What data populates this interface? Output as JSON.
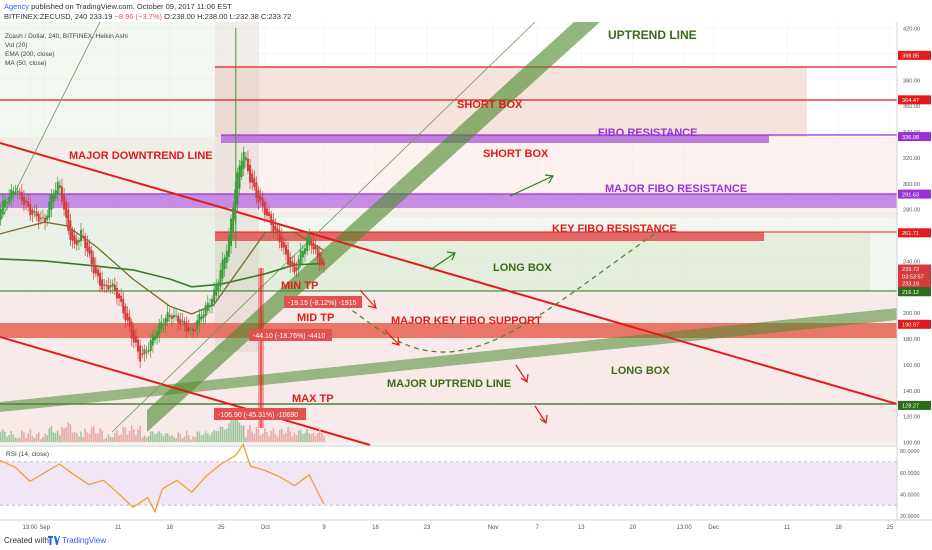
{
  "header": {
    "user": "Agency",
    "published": " published on TradingView.com, October 09, 2017 11:06 EST",
    "ticker": "BITFINEX:ZECUSD, 240",
    "last": "233.19",
    "change": "−8.96 (−3.7%)",
    "ohlc": "O:238.00 H:238.00 L:232.38 C:233.72"
  },
  "legend": {
    "title": "Zcash / Dollar, 240, BITFINEX, Heikin Ashi",
    "vol": "Vol (20)",
    "ema": "EMA (200, close)",
    "ma": "MA (50, close)"
  },
  "rsi_label": "RSI (14, close)",
  "footer": {
    "created": "Created with",
    "brand": "TradingView"
  },
  "colors": {
    "red": "#e31b1b",
    "purple": "#9b30d9",
    "green": "#2e7d1e",
    "olive": "#3d6b19",
    "axis_green": "#2a6e1a",
    "candle_up": "#3c9a3c",
    "candle_down": "#d43c3c",
    "rsi": "#f0a030",
    "ma": "#7a6b2a",
    "ema": "#3a7a2a"
  },
  "chart_data": {
    "type": "candlestick",
    "title": "Zcash / Dollar, 240, BITFINEX, Heikin Ashi",
    "price_axis": {
      "min": 100,
      "max": 420,
      "step": 20,
      "tick_labels": [
        "100.00",
        "120.00",
        "140.00",
        "160.00",
        "180.00",
        "200.00",
        "220.00",
        "240.00",
        "260.00",
        "280.00",
        "300.00",
        "320.00",
        "340.00",
        "360.00",
        "380.00",
        "400.00",
        "420.00"
      ]
    },
    "price_markers": [
      {
        "value": "398.85",
        "color": "#e31b1b",
        "price": 398.85
      },
      {
        "value": "364.47",
        "color": "#e31b1b",
        "price": 364.47
      },
      {
        "value": "336.08",
        "color": "#9b30d9",
        "price": 336.08
      },
      {
        "value": "291.63",
        "color": "#9b30d9",
        "price": 291.63
      },
      {
        "value": "261.71",
        "color": "#e31b1b",
        "price": 261.71
      },
      {
        "value": "233.72",
        "color": "#d43c3c",
        "price": 233.72
      },
      {
        "value": "03:53:57",
        "color": "#d43c3c",
        "price": 228
      },
      {
        "value": "233.19",
        "color": "#d43c3c",
        "price": 222.8
      },
      {
        "value": "216.12",
        "color": "#2a6e1a",
        "price": 216.12
      },
      {
        "value": "190.97",
        "color": "#e31b1b",
        "price": 190.97
      },
      {
        "value": "128.27",
        "color": "#2a6e1a",
        "price": 128.27
      }
    ],
    "time_labels": [
      "13:00",
      "Sep",
      "11",
      "18",
      "25",
      "Oct",
      "9",
      "16",
      "23",
      "Nov",
      "7",
      "13",
      "20",
      "13:00",
      "Dec",
      "11",
      "18",
      "25"
    ],
    "time_label_dates": [
      "2017-08-30",
      "2017-09-01",
      "2017-09-11",
      "2017-09-18",
      "2017-09-25",
      "2017-10-01",
      "2017-10-09",
      "2017-10-16",
      "2017-10-23",
      "2017-11-01",
      "2017-11-07",
      "2017-11-13",
      "2017-11-20",
      "2017-11-27",
      "2017-12-01",
      "2017-12-11",
      "2017-12-18",
      "2017-12-25"
    ],
    "price_path": [
      {
        "x": "2017-08-24",
        "y": 248
      },
      {
        "x": "2017-08-26",
        "y": 282
      },
      {
        "x": "2017-08-28",
        "y": 296
      },
      {
        "x": "2017-08-30",
        "y": 278
      },
      {
        "x": "2017-09-01",
        "y": 270
      },
      {
        "x": "2017-09-02",
        "y": 292
      },
      {
        "x": "2017-09-03",
        "y": 300
      },
      {
        "x": "2017-09-04",
        "y": 268
      },
      {
        "x": "2017-09-05",
        "y": 250
      },
      {
        "x": "2017-09-06",
        "y": 262
      },
      {
        "x": "2017-09-07",
        "y": 244
      },
      {
        "x": "2017-09-08",
        "y": 228
      },
      {
        "x": "2017-09-09",
        "y": 218
      },
      {
        "x": "2017-09-10",
        "y": 222
      },
      {
        "x": "2017-09-11",
        "y": 212
      },
      {
        "x": "2017-09-12",
        "y": 196
      },
      {
        "x": "2017-09-13",
        "y": 180
      },
      {
        "x": "2017-09-14",
        "y": 165
      },
      {
        "x": "2017-09-15",
        "y": 172
      },
      {
        "x": "2017-09-16",
        "y": 184
      },
      {
        "x": "2017-09-17",
        "y": 193
      },
      {
        "x": "2017-09-18",
        "y": 199
      },
      {
        "x": "2017-09-19",
        "y": 195
      },
      {
        "x": "2017-09-20",
        "y": 190
      },
      {
        "x": "2017-09-21",
        "y": 184
      },
      {
        "x": "2017-09-22",
        "y": 196
      },
      {
        "x": "2017-09-23",
        "y": 204
      },
      {
        "x": "2017-09-24",
        "y": 214
      },
      {
        "x": "2017-09-25",
        "y": 234
      },
      {
        "x": "2017-09-26",
        "y": 255
      },
      {
        "x": "2017-09-27",
        "y": 300
      },
      {
        "x": "2017-09-28",
        "y": 326
      },
      {
        "x": "2017-09-29",
        "y": 302
      },
      {
        "x": "2017-09-30",
        "y": 288
      },
      {
        "x": "2017-10-01",
        "y": 278
      },
      {
        "x": "2017-10-02",
        "y": 266
      },
      {
        "x": "2017-10-03",
        "y": 256
      },
      {
        "x": "2017-10-04",
        "y": 241
      },
      {
        "x": "2017-10-05",
        "y": 231
      },
      {
        "x": "2017-10-06",
        "y": 248
      },
      {
        "x": "2017-10-07",
        "y": 258
      },
      {
        "x": "2017-10-08",
        "y": 244
      },
      {
        "x": "2017-10-09",
        "y": 233.7
      }
    ],
    "ema_200": [
      {
        "x": "2017-08-24",
        "y": 242
      },
      {
        "x": "2017-09-01",
        "y": 240
      },
      {
        "x": "2017-09-08",
        "y": 236
      },
      {
        "x": "2017-09-13",
        "y": 233
      },
      {
        "x": "2017-09-18",
        "y": 226
      },
      {
        "x": "2017-09-21",
        "y": 220
      },
      {
        "x": "2017-09-25",
        "y": 222
      },
      {
        "x": "2017-10-01",
        "y": 230
      },
      {
        "x": "2017-10-05",
        "y": 237
      },
      {
        "x": "2017-10-09",
        "y": 238
      }
    ],
    "ma_50": [
      {
        "x": "2017-08-24",
        "y": 258
      },
      {
        "x": "2017-09-01",
        "y": 270
      },
      {
        "x": "2017-09-04",
        "y": 267
      },
      {
        "x": "2017-09-08",
        "y": 251
      },
      {
        "x": "2017-09-13",
        "y": 226
      },
      {
        "x": "2017-09-18",
        "y": 205
      },
      {
        "x": "2017-09-21",
        "y": 199
      },
      {
        "x": "2017-09-24",
        "y": 206
      },
      {
        "x": "2017-09-28",
        "y": 238
      },
      {
        "x": "2017-10-01",
        "y": 262
      },
      {
        "x": "2017-10-05",
        "y": 262
      },
      {
        "x": "2017-10-09",
        "y": 248
      }
    ],
    "rsi": {
      "label": "RSI (14, close)",
      "min": 20,
      "max": 80,
      "bands": [
        30,
        70
      ],
      "tick_labels": [
        "80.0000",
        "60.0000",
        "40.0000",
        "20.0000"
      ],
      "values": [
        {
          "x": "2017-08-24",
          "y": 58
        },
        {
          "x": "2017-08-26",
          "y": 71
        },
        {
          "x": "2017-08-28",
          "y": 65
        },
        {
          "x": "2017-08-30",
          "y": 52
        },
        {
          "x": "2017-09-01",
          "y": 60
        },
        {
          "x": "2017-09-03",
          "y": 68
        },
        {
          "x": "2017-09-05",
          "y": 58
        },
        {
          "x": "2017-09-07",
          "y": 49
        },
        {
          "x": "2017-09-09",
          "y": 53
        },
        {
          "x": "2017-09-11",
          "y": 41
        },
        {
          "x": "2017-09-13",
          "y": 28
        },
        {
          "x": "2017-09-15",
          "y": 37
        },
        {
          "x": "2017-09-16",
          "y": 24
        },
        {
          "x": "2017-09-17",
          "y": 45
        },
        {
          "x": "2017-09-19",
          "y": 53
        },
        {
          "x": "2017-09-21",
          "y": 42
        },
        {
          "x": "2017-09-23",
          "y": 57
        },
        {
          "x": "2017-09-25",
          "y": 68
        },
        {
          "x": "2017-09-27",
          "y": 76
        },
        {
          "x": "2017-09-28",
          "y": 86
        },
        {
          "x": "2017-09-29",
          "y": 66
        },
        {
          "x": "2017-10-01",
          "y": 62
        },
        {
          "x": "2017-10-03",
          "y": 56
        },
        {
          "x": "2017-10-05",
          "y": 48
        },
        {
          "x": "2017-10-07",
          "y": 58
        },
        {
          "x": "2017-10-08",
          "y": 44
        },
        {
          "x": "2017-10-09",
          "y": 31
        }
      ]
    }
  },
  "annotations": {
    "uptrend_line": "UPTREND LINE",
    "short_box_1": "SHORT BOX",
    "fibo_resistance": "FIBO RESISTANCE",
    "short_box_2": "SHORT BOX",
    "major_downtrend_line": "MAJOR DOWNTREND LINE",
    "major_fibo_resistance": "MAJOR FIBO RESISTANCE",
    "key_fibo_resistance": "KEY FIBO RESISTANCE",
    "long_box_1": "LONG BOX",
    "min_tp": "MIN TP",
    "min_tp_value": "-19.15 (-8.12%) -1915",
    "mid_tp": "MID TP",
    "mid_tp_value": "-44.10 (-18.76%) -4410",
    "major_key_fibo_support": "MAJOR KEY FIBO SUPPORT",
    "long_box_2": "LONG BOX",
    "major_uptrend_line": "MAJOR UPTREND LINE",
    "max_tp": "MAX TP",
    "max_tp_value": "-106.90 (-45.31%) -10690"
  }
}
